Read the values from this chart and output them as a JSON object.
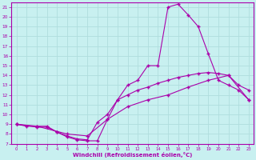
{
  "xlabel": "Windchill (Refroidissement éolien,°C)",
  "background_color": "#c8f0f0",
  "grid_color": "#b0dede",
  "line_color": "#aa00aa",
  "xlim": [
    -0.5,
    23.5
  ],
  "ylim": [
    7,
    21.5
  ],
  "xticks": [
    0,
    1,
    2,
    3,
    4,
    5,
    6,
    7,
    8,
    9,
    10,
    11,
    12,
    13,
    14,
    15,
    16,
    17,
    18,
    19,
    20,
    21,
    22,
    23
  ],
  "yticks": [
    7,
    8,
    9,
    10,
    11,
    12,
    13,
    14,
    15,
    16,
    17,
    18,
    19,
    20,
    21
  ],
  "lines": [
    {
      "x": [
        0,
        1,
        2,
        3,
        4,
        5,
        6,
        7,
        8,
        9,
        10,
        11,
        12,
        13,
        14,
        15,
        16,
        17,
        18,
        19,
        20,
        21,
        22,
        23
      ],
      "y": [
        9.0,
        8.8,
        8.8,
        8.8,
        8.2,
        7.7,
        7.4,
        7.3,
        7.3,
        9.5,
        11.5,
        13.0,
        13.5,
        15.0,
        15.0,
        21.0,
        21.3,
        20.2,
        19.0,
        16.2,
        13.5,
        13.0,
        12.5,
        11.5
      ]
    },
    {
      "x": [
        0,
        2,
        3,
        4,
        5,
        6,
        7,
        8,
        9,
        10,
        11,
        12,
        13,
        14,
        15,
        16,
        17,
        18,
        19,
        20,
        21,
        22,
        23
      ],
      "y": [
        9.0,
        8.7,
        8.7,
        8.2,
        7.8,
        7.5,
        7.4,
        9.2,
        10.0,
        11.5,
        12.0,
        12.5,
        12.8,
        13.2,
        13.5,
        13.8,
        14.0,
        14.2,
        14.3,
        14.2,
        14.0,
        13.0,
        12.5
      ]
    },
    {
      "x": [
        0,
        2,
        5,
        7,
        9,
        11,
        13,
        15,
        17,
        19,
        21,
        23
      ],
      "y": [
        9.0,
        8.8,
        8.0,
        7.8,
        9.5,
        10.8,
        11.5,
        12.0,
        12.8,
        13.5,
        14.0,
        11.5
      ]
    }
  ]
}
